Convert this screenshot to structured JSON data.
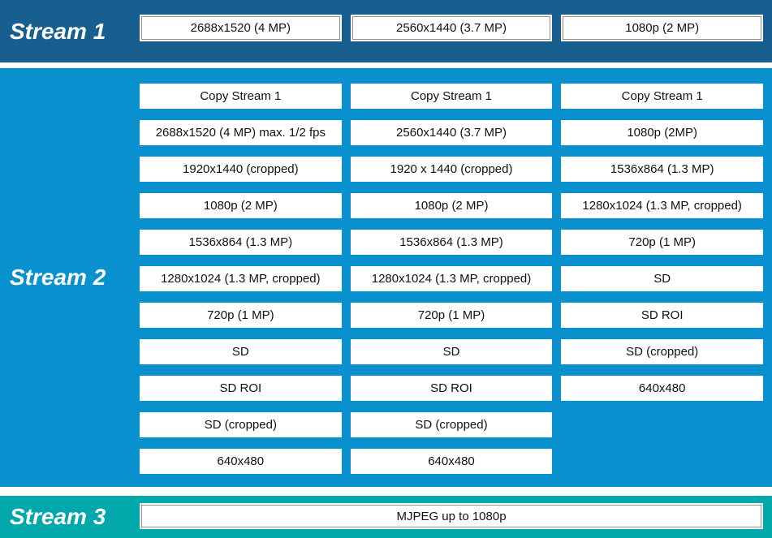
{
  "stream1": {
    "label": "Stream 1",
    "boxes": [
      "2688x1520 (4 MP)",
      "2560x1440 (3.7 MP)",
      "1080p (2 MP)"
    ]
  },
  "stream2": {
    "label": "Stream 2",
    "col1": [
      "Copy Stream 1",
      "2688x1520 (4 MP) max. 1/2 fps",
      "1920x1440 (cropped)",
      "1080p (2 MP)",
      "1536x864 (1.3 MP)",
      "1280x1024 (1.3 MP, cropped)",
      "720p (1 MP)",
      "SD",
      "SD ROI",
      "SD (cropped)",
      "640x480"
    ],
    "col2": [
      "Copy Stream 1",
      "2560x1440 (3.7 MP)",
      "1920 x 1440 (cropped)",
      "1080p (2 MP)",
      "1536x864 (1.3 MP)",
      "1280x1024 (1.3 MP, cropped)",
      "720p (1 MP)",
      "SD",
      "SD ROI",
      "SD (cropped)",
      "640x480"
    ],
    "col3": [
      "Copy Stream 1",
      "1080p (2MP)",
      "1536x864 (1.3 MP)",
      "1280x1024 (1.3 MP, cropped)",
      "720p (1 MP)",
      "SD",
      "SD ROI",
      "SD (cropped)",
      "640x480"
    ]
  },
  "stream3": {
    "label": "Stream 3",
    "boxes": [
      "MJPEG up to 1080p"
    ]
  },
  "colors": {
    "stream1_band": "#175F8E",
    "stream2_band": "#0890CF",
    "stream3_band": "#00A7AB",
    "box_fill": "#FFFFFF",
    "box_border": "#8F8F8F",
    "box_text": "#111111",
    "label_text": "#FFFFFF"
  }
}
